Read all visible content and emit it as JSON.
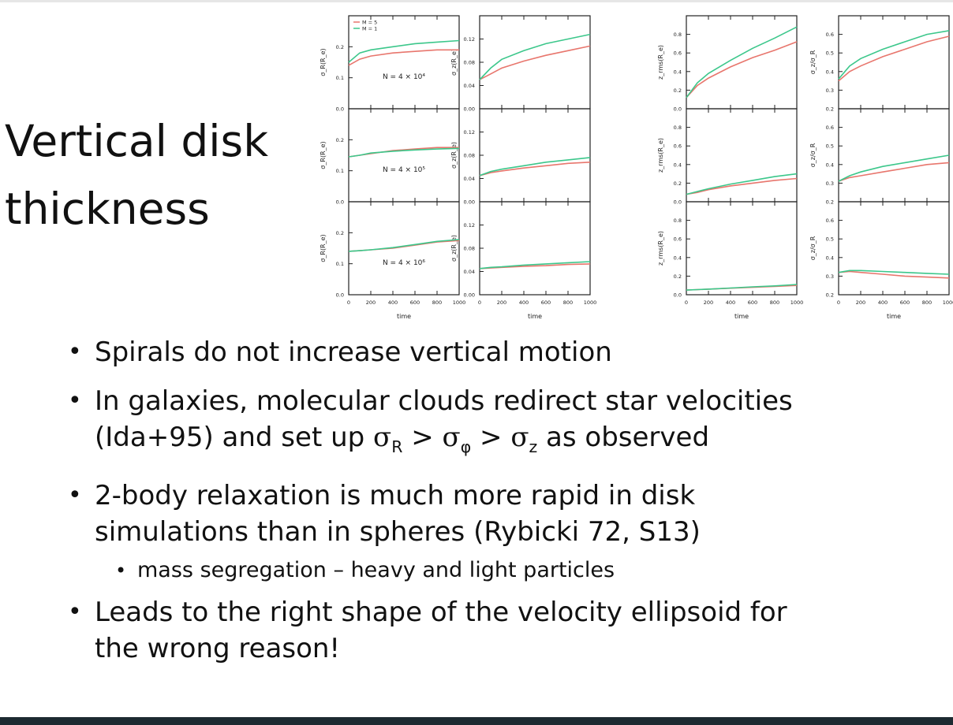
{
  "slide": {
    "title": "Vertical disk thickness",
    "bullets": [
      {
        "text": "Spirals do not increase vertical motion"
      },
      {
        "line1": "In galaxies, molecular clouds redirect star velocities",
        "line2_pre": "(Ida+95) and set up ",
        "sigma": "σ",
        "sub_r": "R",
        "gt": ">",
        "sub_phi": "φ",
        "sub_z": "z",
        "line2_post": " as observed"
      },
      {
        "line1": "2-body relaxation is much more rapid in disk",
        "line2": "simulations than in spheres (Rybicki 72, S13)"
      },
      {
        "text": "mass segregation – heavy and light particles",
        "level": 2
      },
      {
        "line1": "Leads to the right shape of the velocity ellipsoid for",
        "line2": "the wrong reason!"
      }
    ]
  },
  "colors": {
    "series_1": "#e8766d",
    "series_2": "#3cc78b",
    "axis": "#222222",
    "text": "#111111"
  },
  "figure": {
    "legend": [
      "M = 5",
      "M = 1"
    ],
    "panel_labels": [
      "N = 4 × 10⁴",
      "N = 4 × 10⁵",
      "N = 4 × 10⁶"
    ],
    "xlabel": "time",
    "x_ticks": [
      "0",
      "200",
      "400",
      "600",
      "800",
      "1000"
    ],
    "columns": [
      {
        "ylabels": [
          "σ_R(R_e)",
          "σ_R(R_e)",
          "σ_R(R_e)"
        ],
        "ylim": [
          0,
          0.3
        ],
        "yticks": [
          "0.0",
          "0.1",
          "0.2"
        ]
      },
      {
        "ylabels": [
          "σ_z(R_e)",
          "σ_z(R_e)",
          "σ_z(R_e)"
        ],
        "ylim": [
          0,
          0.16
        ],
        "yticks": [
          "0.00",
          "0.04",
          "0.08",
          "0.12"
        ]
      },
      {
        "ylabels": [
          "z_rms(R_e)",
          "z_rms(R_e)",
          "z_rms(R_e)"
        ],
        "ylim": [
          0,
          1.0
        ],
        "yticks": [
          "0.0",
          "0.2",
          "0.4",
          "0.6",
          "0.8"
        ]
      },
      {
        "ylabels": [
          "σ_z/σ_R",
          "σ_z/σ_R",
          "σ_z/σ_R"
        ],
        "ylim": [
          0.2,
          0.7
        ],
        "yticks": [
          "0.2",
          "0.3",
          "0.4",
          "0.5",
          "0.6"
        ]
      }
    ]
  },
  "chart_data": {
    "type": "line",
    "x": [
      0,
      100,
      200,
      400,
      600,
      800,
      1000
    ],
    "series_names": [
      "M = 5",
      "M = 1"
    ],
    "panels": [
      {
        "row": 0,
        "col": 0,
        "label": "N = 4 × 10⁴",
        "series": [
          [
            0.14,
            0.16,
            0.17,
            0.18,
            0.185,
            0.19,
            0.19
          ],
          [
            0.15,
            0.18,
            0.19,
            0.2,
            0.21,
            0.215,
            0.22
          ]
        ]
      },
      {
        "row": 1,
        "col": 0,
        "label": "N = 4 × 10⁵",
        "series": [
          [
            0.145,
            0.15,
            0.155,
            0.165,
            0.17,
            0.175,
            0.175
          ],
          [
            0.145,
            0.15,
            0.157,
            0.163,
            0.167,
            0.17,
            0.172
          ]
        ]
      },
      {
        "row": 2,
        "col": 0,
        "label": "N = 4 × 10⁶",
        "series": [
          [
            0.14,
            0.142,
            0.145,
            0.15,
            0.16,
            0.17,
            0.175
          ],
          [
            0.14,
            0.142,
            0.145,
            0.152,
            0.162,
            0.172,
            0.178
          ]
        ]
      },
      {
        "row": 0,
        "col": 1,
        "series": [
          [
            0.05,
            0.06,
            0.07,
            0.082,
            0.092,
            0.1,
            0.108
          ],
          [
            0.05,
            0.07,
            0.085,
            0.1,
            0.112,
            0.12,
            0.128
          ]
        ]
      },
      {
        "row": 1,
        "col": 1,
        "series": [
          [
            0.045,
            0.05,
            0.053,
            0.058,
            0.062,
            0.066,
            0.068
          ],
          [
            0.045,
            0.052,
            0.056,
            0.062,
            0.068,
            0.072,
            0.076
          ]
        ]
      },
      {
        "row": 2,
        "col": 1,
        "series": [
          [
            0.045,
            0.046,
            0.047,
            0.049,
            0.05,
            0.052,
            0.053
          ],
          [
            0.045,
            0.047,
            0.048,
            0.051,
            0.053,
            0.055,
            0.057
          ]
        ]
      },
      {
        "row": 0,
        "col": 2,
        "series": [
          [
            0.12,
            0.25,
            0.33,
            0.45,
            0.55,
            0.63,
            0.72
          ],
          [
            0.12,
            0.28,
            0.38,
            0.52,
            0.65,
            0.76,
            0.88
          ]
        ]
      },
      {
        "row": 1,
        "col": 2,
        "series": [
          [
            0.08,
            0.1,
            0.13,
            0.17,
            0.2,
            0.23,
            0.25
          ],
          [
            0.08,
            0.11,
            0.14,
            0.19,
            0.23,
            0.27,
            0.3
          ]
        ]
      },
      {
        "row": 2,
        "col": 2,
        "series": [
          [
            0.05,
            0.055,
            0.06,
            0.07,
            0.08,
            0.09,
            0.1
          ],
          [
            0.05,
            0.055,
            0.06,
            0.072,
            0.085,
            0.095,
            0.11
          ]
        ]
      },
      {
        "row": 0,
        "col": 3,
        "series": [
          [
            0.35,
            0.4,
            0.43,
            0.48,
            0.52,
            0.56,
            0.59
          ],
          [
            0.36,
            0.43,
            0.47,
            0.52,
            0.56,
            0.6,
            0.62
          ]
        ]
      },
      {
        "row": 1,
        "col": 3,
        "series": [
          [
            0.31,
            0.33,
            0.34,
            0.36,
            0.38,
            0.4,
            0.41
          ],
          [
            0.31,
            0.34,
            0.36,
            0.39,
            0.41,
            0.43,
            0.45
          ]
        ]
      },
      {
        "row": 2,
        "col": 3,
        "series": [
          [
            0.32,
            0.325,
            0.32,
            0.31,
            0.3,
            0.295,
            0.29
          ],
          [
            0.32,
            0.33,
            0.33,
            0.325,
            0.32,
            0.315,
            0.31
          ]
        ]
      }
    ]
  }
}
